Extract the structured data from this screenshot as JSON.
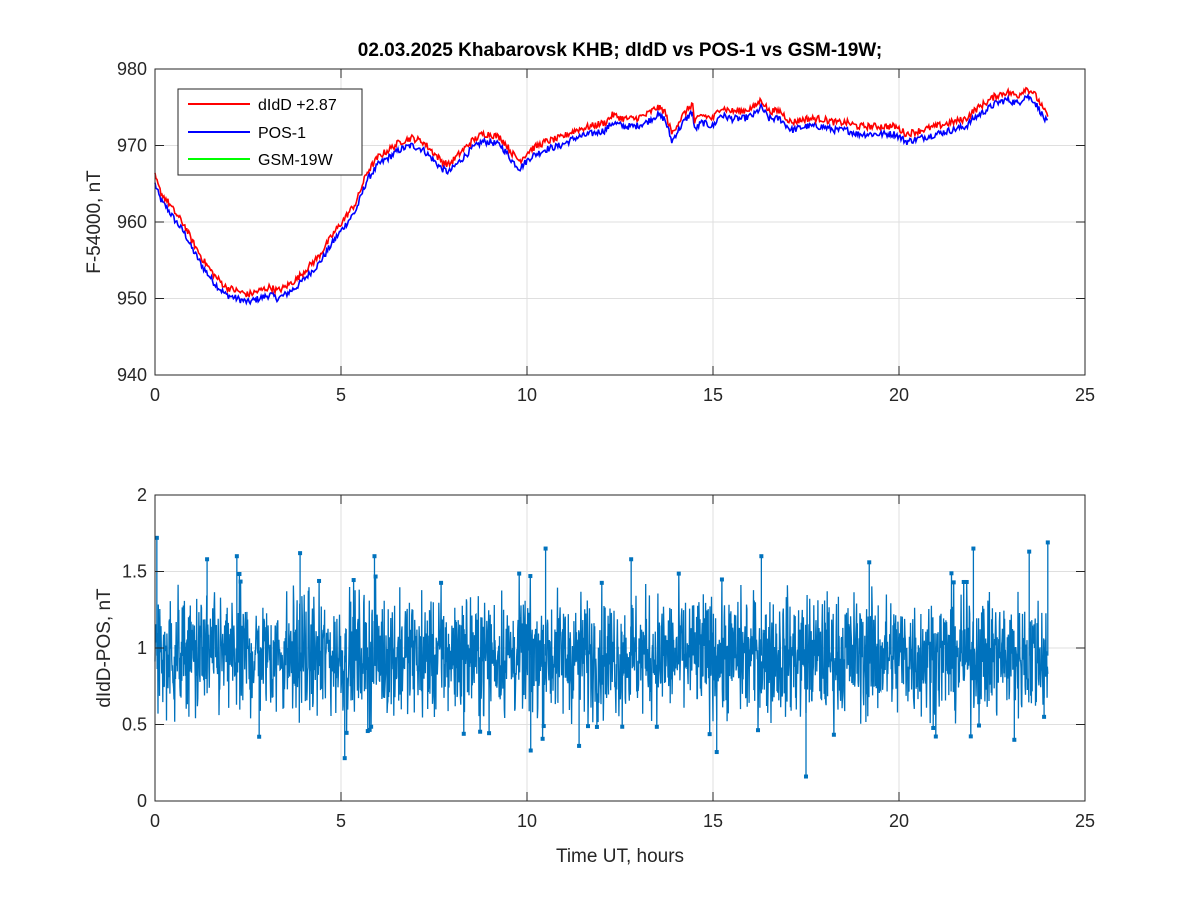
{
  "chart_data": [
    {
      "type": "line",
      "title": "02.03.2025  Khabarovsk KHB; dIdD vs POS-1 vs GSM-19W;",
      "xlabel": "",
      "ylabel": "F-54000, nT",
      "xlim": [
        0,
        25
      ],
      "ylim": [
        940,
        980
      ],
      "xticks": [
        0,
        5,
        10,
        15,
        20,
        25
      ],
      "yticks": [
        940,
        950,
        960,
        970,
        980
      ],
      "grid": true,
      "legend_position": "top-left",
      "series": [
        {
          "name": "dIdD +2.87",
          "color": "#ff0000",
          "x": [
            0,
            0.1,
            0.2,
            0.3,
            0.5,
            0.8,
            1.0,
            1.3,
            1.6,
            1.9,
            2.2,
            2.5,
            2.8,
            3.1,
            3.3,
            3.5,
            3.8,
            4.1,
            4.4,
            4.8,
            5.1,
            5.4,
            5.7,
            6.0,
            6.3,
            6.6,
            6.9,
            7.2,
            7.5,
            7.7,
            7.9,
            8.2,
            8.5,
            8.8,
            9.0,
            9.3,
            9.6,
            9.8,
            10.1,
            10.5,
            10.9,
            11.3,
            11.7,
            12.1,
            12.3,
            12.6,
            12.9,
            13.2,
            13.5,
            13.7,
            13.9,
            14.0,
            14.2,
            14.45,
            14.5,
            14.7,
            15.0,
            15.2,
            15.5,
            15.8,
            16.1,
            16.3,
            16.5,
            16.8,
            17.1,
            17.5,
            17.9,
            18.3,
            18.6,
            18.9,
            19.2,
            19.5,
            19.9,
            20.2,
            20.6,
            21.0,
            21.4,
            21.8,
            22.0,
            22.3,
            22.6,
            22.9,
            23.2,
            23.4,
            23.6,
            23.8,
            23.9,
            24.0
          ],
          "y": [
            966,
            964.5,
            963.5,
            963,
            961.5,
            959.5,
            957.5,
            955,
            953,
            951.5,
            951,
            950.5,
            951,
            951.5,
            951,
            951.5,
            952.5,
            954,
            955.5,
            958.5,
            960.5,
            962.5,
            966.5,
            968.5,
            969.5,
            970.5,
            971,
            970.5,
            969,
            968,
            967.5,
            969,
            970.5,
            971.5,
            971.5,
            971,
            969,
            968,
            969.5,
            970.5,
            971,
            972,
            972.5,
            973,
            974,
            973.5,
            973.5,
            974,
            975,
            974.5,
            971.5,
            972.5,
            974,
            975.5,
            973,
            974,
            973.5,
            975,
            974.5,
            974.5,
            975,
            976,
            974.5,
            974.5,
            973,
            973.5,
            973.5,
            973,
            973,
            972.5,
            972.5,
            972.5,
            972.5,
            971.5,
            972,
            972.5,
            973,
            973.5,
            974.5,
            975.5,
            976.5,
            977,
            976.5,
            977.5,
            977,
            975.5,
            974.5,
            974
          ]
        },
        {
          "name": "POS-1",
          "color": "#0000ff",
          "x": [
            0,
            0.1,
            0.2,
            0.3,
            0.5,
            0.8,
            1.0,
            1.3,
            1.6,
            1.9,
            2.2,
            2.5,
            2.8,
            3.1,
            3.3,
            3.5,
            3.8,
            4.1,
            4.4,
            4.8,
            5.1,
            5.4,
            5.7,
            6.0,
            6.3,
            6.6,
            6.9,
            7.2,
            7.5,
            7.7,
            7.9,
            8.2,
            8.5,
            8.8,
            9.0,
            9.3,
            9.6,
            9.8,
            10.1,
            10.5,
            10.9,
            11.3,
            11.7,
            12.1,
            12.3,
            12.6,
            12.9,
            13.2,
            13.5,
            13.7,
            13.9,
            14.0,
            14.2,
            14.45,
            14.5,
            14.7,
            15.0,
            15.2,
            15.5,
            15.8,
            16.1,
            16.3,
            16.5,
            16.8,
            17.1,
            17.5,
            17.9,
            18.3,
            18.6,
            18.9,
            19.2,
            19.5,
            19.9,
            20.2,
            20.6,
            21.0,
            21.4,
            21.8,
            22.0,
            22.3,
            22.6,
            22.9,
            23.2,
            23.4,
            23.6,
            23.8,
            23.9,
            24.0
          ],
          "y": [
            965,
            963.5,
            962.5,
            962,
            960.5,
            958.5,
            956.5,
            954,
            952,
            950.5,
            950,
            949.5,
            950,
            950.5,
            950,
            950.5,
            951.5,
            953,
            954.5,
            957.5,
            959.5,
            961.5,
            965.5,
            967.5,
            968.5,
            969.5,
            970,
            969.5,
            968,
            967,
            966.5,
            968,
            969.5,
            970.5,
            970.5,
            970,
            968,
            967,
            968.5,
            969.5,
            970,
            971,
            971.5,
            972,
            973,
            972.5,
            972.5,
            973,
            974,
            973.5,
            970.5,
            971.5,
            973,
            974.5,
            972,
            973,
            972.5,
            974,
            973.5,
            973.5,
            974,
            975,
            973.5,
            973.5,
            972,
            972.5,
            972.5,
            972,
            972,
            971.5,
            971.5,
            971.5,
            971.5,
            970.5,
            971,
            971.5,
            972,
            972.5,
            973.5,
            974.5,
            975.5,
            976,
            975.5,
            976.5,
            976,
            974.5,
            973.5,
            973
          ]
        },
        {
          "name": "GSM-19W",
          "color": "#00ff00",
          "x": [],
          "y": []
        }
      ]
    },
    {
      "type": "line",
      "title": "",
      "xlabel": "Time UT, hours",
      "ylabel": "dIdD-POS, nT",
      "xlim": [
        0,
        25
      ],
      "ylim": [
        0,
        2
      ],
      "xticks": [
        0,
        5,
        10,
        15,
        20,
        25
      ],
      "yticks": [
        0,
        0.5,
        1,
        1.5,
        2
      ],
      "grid": true,
      "series": [
        {
          "color": "#0072bd",
          "marker": "square",
          "x_range": [
            0,
            24
          ],
          "mean": 0.95,
          "typical_band": [
            0.55,
            1.4
          ],
          "x": [
            0.05,
            1.4,
            2.2,
            2.8,
            3.9,
            5.1,
            5.9,
            10.1,
            10.5,
            11.4,
            12.8,
            15.1,
            16.3,
            17.5,
            19.2,
            22.0,
            23.1,
            23.5,
            23.9,
            24.0
          ],
          "y": [
            1.72,
            1.58,
            1.6,
            0.42,
            1.62,
            0.28,
            1.6,
            0.33,
            1.65,
            0.36,
            1.58,
            0.32,
            1.6,
            0.16,
            1.56,
            1.65,
            0.4,
            1.63,
            0.55,
            1.69
          ]
        }
      ]
    }
  ]
}
